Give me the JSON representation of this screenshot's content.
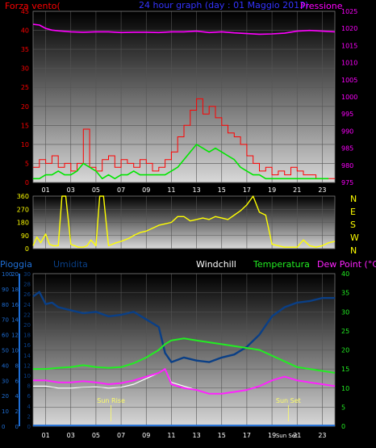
{
  "colors": {
    "wind": "#ff0000",
    "wind_avg": "#00e600",
    "pressure": "#ff00ff",
    "title": "#3333ff",
    "direction": "#ffff00",
    "dir_labels": "#ffff00",
    "rain": "#1f6fd6",
    "humidity": "#0a3f86",
    "windchill": "#ffffff",
    "temperature": "#22ee22",
    "dewpoint": "#ff22ff",
    "sun": "#ffff66",
    "axis_tick": "#ffffff"
  },
  "chart_data": [
    {
      "type": "line",
      "title": "24 hour graph (day : 01 Maggio 2013)",
      "left_label": "Forza vento(",
      "right_label": "Pressione",
      "x_ticks": [
        "01",
        "03",
        "05",
        "07",
        "09",
        "11",
        "13",
        "15",
        "17",
        "19",
        "21",
        "23"
      ],
      "x_range": [
        0,
        24
      ],
      "y_left_range": [
        0,
        45
      ],
      "y_left_ticks": [
        "0",
        "5",
        "10",
        "15",
        "20",
        "25",
        "30",
        "35",
        "40",
        "45"
      ],
      "y_right_range": [
        975,
        1025
      ],
      "y_right_ticks": [
        "975",
        "980",
        "985",
        "990",
        "995",
        "1000",
        "1005",
        "1010",
        "1015",
        "1020",
        "1025"
      ],
      "series": [
        {
          "name": "Forza vento(",
          "x": [
            0,
            0.5,
            1,
            1.5,
            2,
            2.5,
            3,
            3.5,
            4,
            4.5,
            5,
            5.5,
            6,
            6.5,
            7,
            7.5,
            8,
            8.5,
            9,
            9.5,
            10,
            10.5,
            11,
            11.5,
            12,
            12.5,
            13,
            13.5,
            14,
            14.5,
            15,
            15.5,
            16,
            16.5,
            17,
            17.5,
            18,
            18.5,
            19,
            19.5,
            20,
            20.5,
            21,
            21.5,
            22,
            22.5,
            23,
            23.5
          ],
          "y": [
            4,
            6,
            5,
            7,
            4,
            5,
            3,
            5,
            14,
            4,
            3,
            6,
            7,
            4,
            6,
            5,
            4,
            6,
            5,
            3,
            4,
            6,
            8,
            12,
            15,
            19,
            22,
            18,
            20,
            17,
            15,
            13,
            12,
            10,
            7,
            5,
            3,
            4,
            2,
            3,
            2,
            4,
            3,
            2,
            2,
            1,
            1,
            1
          ]
        },
        {
          "name": "Forza vento(",
          "x": [
            0,
            0.5,
            1,
            1.5,
            2,
            2.5,
            3,
            3.5,
            4,
            4.5,
            5,
            5.5,
            6,
            6.5,
            7,
            7.5,
            8,
            8.5,
            9,
            9.5,
            10,
            10.5,
            11,
            11.5,
            12,
            12.5,
            13,
            13.5,
            14,
            14.5,
            15,
            15.5,
            16,
            16.5,
            17,
            17.5,
            18,
            18.5,
            19,
            19.5,
            20,
            20.5,
            21,
            21.5,
            22,
            22.5,
            23,
            23.5
          ],
          "y": [
            1,
            1,
            2,
            2,
            3,
            2,
            2,
            3,
            5,
            4,
            3,
            1,
            2,
            1,
            2,
            2,
            3,
            2,
            2,
            2,
            2,
            2,
            3,
            4,
            6,
            8,
            10,
            9,
            8,
            9,
            8,
            7,
            6,
            4,
            3,
            2,
            2,
            1,
            1,
            1,
            1,
            1,
            1,
            1,
            1,
            1,
            1,
            1
          ]
        },
        {
          "name": "Pressione",
          "x": [
            0,
            0.5,
            1,
            1.5,
            2,
            3,
            4,
            5,
            6,
            7,
            8,
            9,
            10,
            11,
            12,
            13,
            14,
            15,
            16,
            17,
            18,
            19,
            20,
            21,
            22,
            23,
            24
          ],
          "y": [
            1021.2,
            1021,
            1020,
            1019.5,
            1019.3,
            1019,
            1018.9,
            1019,
            1019,
            1018.8,
            1018.9,
            1018.9,
            1018.8,
            1019,
            1019,
            1019.2,
            1018.8,
            1019,
            1018.7,
            1018.5,
            1018.3,
            1018.4,
            1018.6,
            1019.2,
            1019.4,
            1019.2,
            1019
          ]
        }
      ]
    },
    {
      "type": "line",
      "title": "",
      "y_range": [
        0,
        360
      ],
      "y_ticks": [
        "0",
        "90",
        "180",
        "270",
        "360"
      ],
      "dir_labels": [
        "N",
        "W",
        "S",
        "E",
        "N"
      ],
      "series": [
        {
          "name": "",
          "x": [
            0,
            0.3,
            0.6,
            1,
            1.3,
            1.6,
            2,
            2.3,
            2.6,
            3,
            3.3,
            3.6,
            4,
            4.3,
            4.6,
            5,
            5.3,
            5.6,
            6,
            6.3,
            6.6,
            7,
            7.3,
            7.6,
            8,
            8.5,
            9,
            9.5,
            10,
            10.5,
            11,
            11.5,
            12,
            12.5,
            13,
            13.5,
            14,
            14.5,
            15,
            15.5,
            16,
            16.5,
            17,
            17.5,
            18,
            18.5,
            19,
            19.5,
            20,
            20.5,
            21,
            21.5,
            22,
            22.5,
            23,
            23.5,
            24
          ],
          "y": [
            20,
            80,
            40,
            100,
            30,
            20,
            20,
            360,
            360,
            30,
            20,
            10,
            10,
            20,
            60,
            20,
            360,
            360,
            20,
            30,
            40,
            50,
            60,
            70,
            90,
            110,
            120,
            140,
            160,
            170,
            180,
            220,
            220,
            190,
            200,
            210,
            200,
            220,
            210,
            200,
            230,
            260,
            300,
            360,
            250,
            230,
            30,
            20,
            10,
            10,
            10,
            60,
            20,
            10,
            20,
            40,
            50
          ]
        }
      ]
    },
    {
      "type": "line",
      "title": "",
      "labels": [
        "Pioggia",
        "Umidita",
        "Windchill",
        "Temperatura",
        "Dew Point (°C)"
      ],
      "rain_ticks": [
        "0",
        "2",
        "4",
        "6",
        "8",
        "10",
        "12",
        "14",
        "16",
        "18",
        "20"
      ],
      "humidity_ticks": [
        "0",
        "10",
        "20",
        "30",
        "40",
        "50",
        "60",
        "70",
        "80",
        "90",
        "100"
      ],
      "temp_left_ticks": [
        "0",
        "2",
        "4",
        "6",
        "8",
        "10",
        "12",
        "14",
        "16",
        "18",
        "20",
        "22",
        "24",
        "26",
        "28",
        "30"
      ],
      "temp_right_ticks": [
        "0",
        "5",
        "10",
        "15",
        "20",
        "25",
        "30",
        "35",
        "40"
      ],
      "temp_range": [
        0,
        40
      ],
      "humidity_range": [
        0,
        100
      ],
      "sun_rise": {
        "label": "Sun Rise",
        "x": 6.2
      },
      "sun_set": {
        "label": "Sun Set",
        "x": 20.3
      },
      "series": [
        {
          "name": "Umidita",
          "x": [
            0,
            0.5,
            1,
            1.5,
            2,
            3,
            4,
            5,
            6,
            7,
            8,
            9,
            10,
            10.5,
            11,
            12,
            13,
            14,
            15,
            16,
            17,
            18,
            19,
            20,
            21,
            22,
            23,
            24
          ],
          "y": [
            85,
            88,
            80,
            81,
            78,
            76,
            74,
            75,
            72,
            73,
            75,
            70,
            65,
            48,
            42,
            45,
            43,
            42,
            45,
            47,
            52,
            60,
            72,
            78,
            81,
            82,
            84,
            84
          ]
        },
        {
          "name": "Windchill",
          "x": [
            0,
            1,
            2,
            3,
            4,
            5,
            6,
            7,
            8,
            9,
            10,
            10.5,
            11,
            12,
            13,
            14,
            15,
            16,
            17,
            18,
            19,
            20,
            21,
            22,
            23,
            24
          ],
          "y": [
            10.5,
            10.5,
            10,
            10,
            10.2,
            10.3,
            10,
            10.2,
            11,
            12.5,
            14,
            15,
            11.5,
            10.5,
            9.5,
            8.5,
            8.5,
            9,
            9.5,
            10.5,
            12,
            13,
            12,
            11.5,
            11,
            10.5
          ]
        },
        {
          "name": "Temperatura",
          "x": [
            0,
            1,
            2,
            3,
            4,
            5,
            6,
            7,
            8,
            9,
            10,
            10.5,
            11,
            12,
            13,
            14,
            15,
            16,
            17,
            18,
            19,
            20,
            21,
            22,
            23,
            24
          ],
          "y": [
            15,
            15,
            15.3,
            15.5,
            16,
            15.5,
            15.3,
            15.5,
            16.5,
            18,
            20,
            21.5,
            22.5,
            23,
            22.5,
            22,
            21.5,
            21,
            20.5,
            20,
            18.5,
            17,
            15.5,
            15,
            14.5,
            14
          ]
        },
        {
          "name": "Dew Point (°C)",
          "x": [
            0,
            1,
            2,
            3,
            4,
            5,
            6,
            7,
            8,
            9,
            10,
            10.5,
            11,
            12,
            13,
            14,
            15,
            16,
            17,
            18,
            19,
            20,
            21,
            22,
            23,
            24
          ],
          "y": [
            12,
            12,
            11.5,
            11.5,
            11.8,
            11.5,
            11,
            11.3,
            12,
            13,
            14,
            15,
            11,
            10,
            9.5,
            8.5,
            8.5,
            9,
            9.5,
            10.5,
            12,
            13,
            12,
            11.5,
            11,
            10.5
          ]
        },
        {
          "name": "Pioggia",
          "x": [
            0,
            1,
            2,
            3,
            4,
            5,
            6,
            7,
            8,
            9,
            10,
            11,
            12,
            13,
            14,
            15,
            16,
            17,
            18,
            19,
            20,
            21,
            22,
            23,
            24
          ],
          "y": [
            0.2,
            0.2,
            0.2,
            0.2,
            0.2,
            0.2,
            0.2,
            0.2,
            0.2,
            0.2,
            0.2,
            0.2,
            0.2,
            0.2,
            0.2,
            0.2,
            0.2,
            0.2,
            0.2,
            0.2,
            0.2,
            0.2,
            0.2,
            0.2,
            0.2
          ]
        }
      ]
    }
  ]
}
